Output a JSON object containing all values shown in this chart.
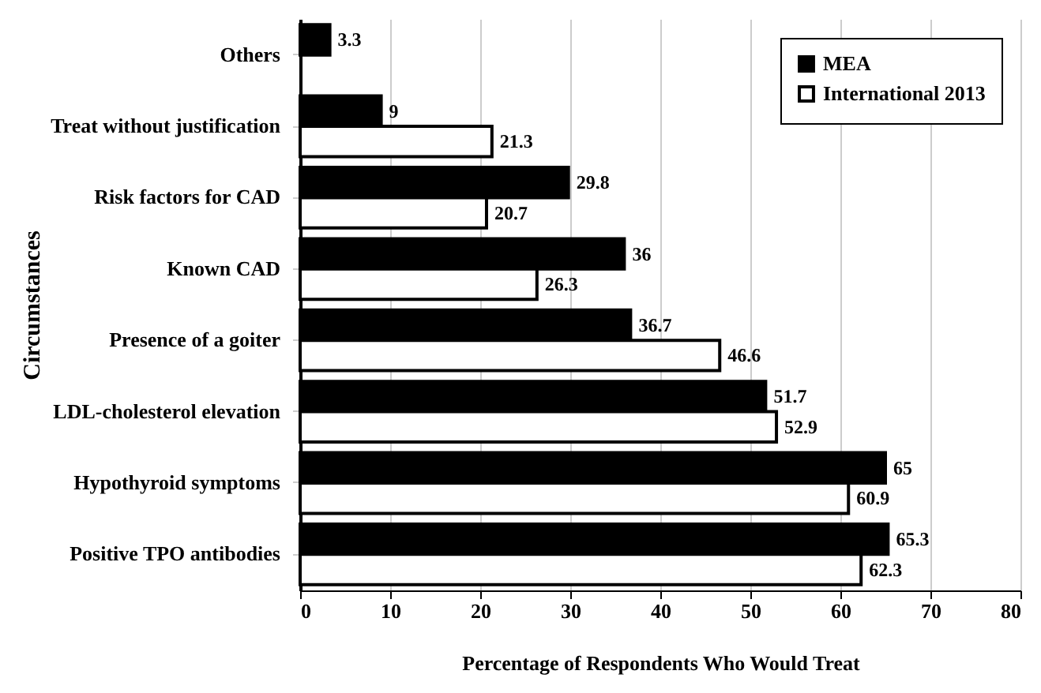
{
  "chart_data": {
    "type": "bar",
    "orientation": "horizontal",
    "xlabel": "Percentage of Respondents Who Would Treat",
    "ylabel": "Circumstances",
    "categories": [
      "Others",
      "Treat without justification",
      "Risk factors for CAD",
      "Known CAD",
      "Presence of a goiter",
      "LDL-cholesterol elevation",
      "Hypothyroid symptoms",
      "Positive TPO antibodies"
    ],
    "series": [
      {
        "name": "MEA",
        "color": "#000000",
        "values": [
          3.3,
          9,
          29.8,
          36,
          36.7,
          51.7,
          65,
          65.3
        ]
      },
      {
        "name": "International 2013",
        "color": "#ffffff",
        "values": [
          null,
          21.3,
          20.7,
          26.3,
          46.6,
          52.9,
          60.9,
          62.3
        ]
      }
    ],
    "xlim": [
      0,
      80
    ],
    "xticks": [
      0,
      10,
      20,
      30,
      40,
      50,
      60,
      70,
      80
    ],
    "grid": "x",
    "legend": "top right",
    "data_labels": true
  }
}
